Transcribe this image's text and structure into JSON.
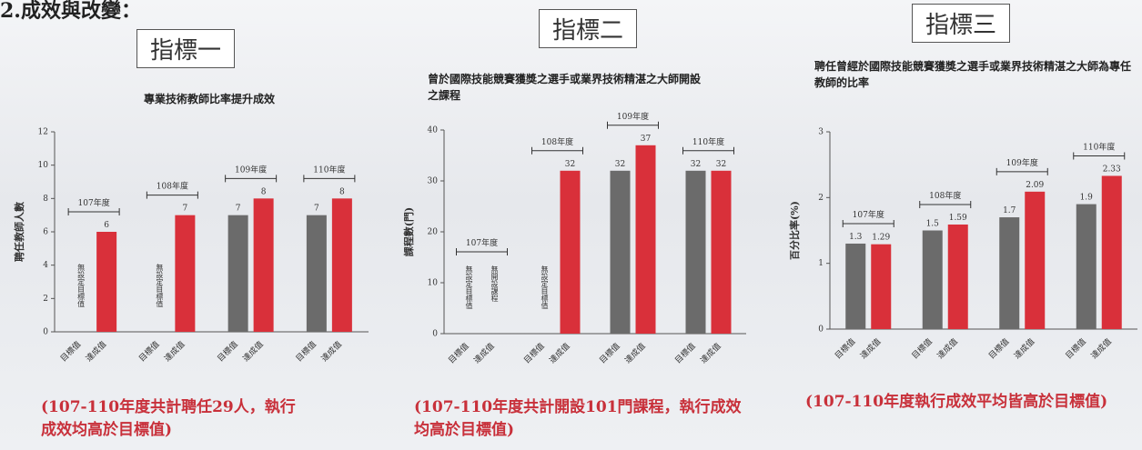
{
  "heading": "2.成效與改變：",
  "chart_data": [
    {
      "type": "bar",
      "indicator": "指標一",
      "title": "專業技術教師比率提升成效",
      "y_label": "聘任教師人數",
      "categories": [
        "107年度",
        "108年度",
        "109年度",
        "110年度"
      ],
      "series": [
        {
          "name": "目標值",
          "color": "#6b6b6b",
          "values": [
            null,
            null,
            7,
            7
          ],
          "annotations": [
            "無設定目標值",
            "無設定目標值",
            null,
            null
          ]
        },
        {
          "name": "達成值",
          "color": "#d9303a",
          "values": [
            6,
            7,
            8,
            8
          ]
        }
      ],
      "ylim": [
        0,
        12
      ],
      "yticks": [
        0,
        2,
        4,
        6,
        8,
        10,
        12
      ],
      "summary": "(107-110年度共計聘任29人，執行成效均高於目標值)"
    },
    {
      "type": "bar",
      "indicator": "指標二",
      "title": "曾於國際技能競賽獲獎之選手或業界技術精湛之大師開設之課程",
      "y_label": "課程數(門)",
      "categories": [
        "107年度",
        "108年度",
        "109年度",
        "110年度"
      ],
      "series": [
        {
          "name": "目標值",
          "color": "#6b6b6b",
          "values": [
            null,
            null,
            32,
            32
          ],
          "annotations": [
            "無設定目標值",
            "無設定目標值",
            null,
            null
          ]
        },
        {
          "name": "達成值",
          "color": "#d9303a",
          "values": [
            null,
            32,
            37,
            32
          ],
          "annotations": [
            "無開設課程",
            null,
            null,
            null
          ]
        }
      ],
      "ylim": [
        0,
        40
      ],
      "yticks": [
        0,
        10,
        20,
        30,
        40
      ],
      "summary": "(107-110年度共計開設101門課程，執行成效均高於目標值)"
    },
    {
      "type": "bar",
      "indicator": "指標三",
      "title": "聘任曾經於國際技能競賽獲獎之選手或業界技術精湛之大師為專任教師的比率",
      "y_label": "百分比率(%)",
      "categories": [
        "107年度",
        "108年度",
        "109年度",
        "110年度"
      ],
      "series": [
        {
          "name": "目標值",
          "color": "#6b6b6b",
          "values": [
            1.3,
            1.5,
            1.7,
            1.9
          ]
        },
        {
          "name": "達成值",
          "color": "#d9303a",
          "values": [
            1.29,
            1.59,
            2.09,
            2.33
          ]
        }
      ],
      "ylim": [
        0,
        3
      ],
      "yticks": [
        0,
        1,
        2,
        3
      ],
      "summary": "(107-110年度執行成效平均皆高於目標值)"
    }
  ]
}
